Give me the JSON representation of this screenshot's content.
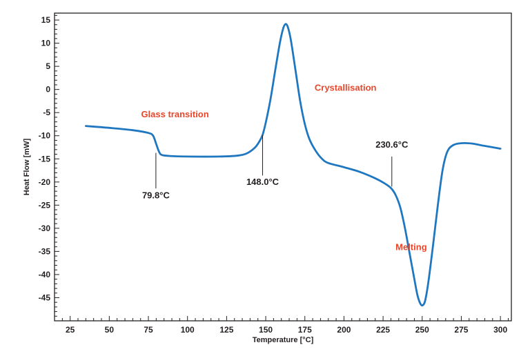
{
  "colors": {
    "curve": "#1f77c0",
    "annotation": "#e8462a",
    "axis": "#231f20"
  },
  "chart_data": {
    "type": "line",
    "xlabel": "Temperature [°C]",
    "ylabel": "Heat Flow [mW]",
    "xlim": [
      15,
      307
    ],
    "ylim": [
      -50,
      16.5
    ],
    "x_ticks": [
      25,
      50,
      75,
      100,
      125,
      150,
      175,
      200,
      225,
      250,
      275,
      300
    ],
    "y_ticks": [
      15,
      10,
      5,
      0,
      -5,
      -10,
      -15,
      -20,
      -25,
      -30,
      -35,
      -40,
      -45
    ],
    "x_tick_labels": [
      "25",
      "50",
      "75",
      "100",
      "125",
      "150",
      "175",
      "200",
      "225",
      "250",
      "275",
      "300"
    ],
    "y_tick_labels": [
      "15",
      "10",
      "5",
      "0",
      "-5",
      "-10",
      "-15",
      "-20",
      "-25",
      "-30",
      "-35",
      "-40",
      "-45"
    ],
    "series": [
      {
        "points": [
          [
            35,
            -7.9
          ],
          [
            50,
            -8.3
          ],
          [
            65,
            -8.8
          ],
          [
            75,
            -9.4
          ],
          [
            78,
            -10.0
          ],
          [
            80,
            -11.8
          ],
          [
            82,
            -13.6
          ],
          [
            84,
            -14.2
          ],
          [
            90,
            -14.4
          ],
          [
            100,
            -14.5
          ],
          [
            120,
            -14.5
          ],
          [
            132,
            -14.3
          ],
          [
            138,
            -13.8
          ],
          [
            143,
            -12.6
          ],
          [
            146,
            -11.2
          ],
          [
            148,
            -9.8
          ],
          [
            150,
            -7.2
          ],
          [
            153,
            -2.2
          ],
          [
            156,
            4.0
          ],
          [
            159,
            10.0
          ],
          [
            161,
            13.0
          ],
          [
            162.5,
            14.1
          ],
          [
            164,
            13.6
          ],
          [
            166,
            10.8
          ],
          [
            169,
            4.2
          ],
          [
            172,
            -2.5
          ],
          [
            175,
            -7.5
          ],
          [
            178,
            -10.8
          ],
          [
            182,
            -13.3
          ],
          [
            186,
            -15.0
          ],
          [
            190,
            -15.9
          ],
          [
            200,
            -16.8
          ],
          [
            210,
            -17.8
          ],
          [
            220,
            -19.2
          ],
          [
            226,
            -20.3
          ],
          [
            230,
            -21.3
          ],
          [
            233,
            -22.8
          ],
          [
            236,
            -25.5
          ],
          [
            239,
            -30.0
          ],
          [
            242,
            -35.5
          ],
          [
            245,
            -41.0
          ],
          [
            247,
            -44.5
          ],
          [
            249,
            -46.4
          ],
          [
            250.5,
            -46.6
          ],
          [
            252,
            -45.5
          ],
          [
            254,
            -41.5
          ],
          [
            257,
            -33.5
          ],
          [
            260,
            -25.0
          ],
          [
            263,
            -17.5
          ],
          [
            266,
            -13.5
          ],
          [
            270,
            -12.0
          ],
          [
            276,
            -11.6
          ],
          [
            282,
            -11.7
          ],
          [
            290,
            -12.2
          ],
          [
            300,
            -12.8
          ]
        ]
      }
    ],
    "annotations": [
      {
        "text": "Glass transition",
        "x": 92,
        "y": -6.0,
        "color": "red"
      },
      {
        "text": "Crystallisation",
        "x": 201,
        "y": -0.3,
        "color": "red"
      },
      {
        "text": "Melting",
        "x": 243,
        "y": -34.7,
        "color": "red"
      },
      {
        "text": "79.8°C",
        "x": 79.8,
        "y": -23.5,
        "leader_from": -13.7,
        "leader_to": -21.4
      },
      {
        "text": "148.0°C",
        "x": 148.0,
        "y": -20.6,
        "leader_from": -9.9,
        "leader_to": -18.6
      },
      {
        "text": "230.6°C",
        "x": 230.6,
        "y": -12.6,
        "leader_from": -14.5,
        "leader_to": -21.0
      }
    ]
  }
}
